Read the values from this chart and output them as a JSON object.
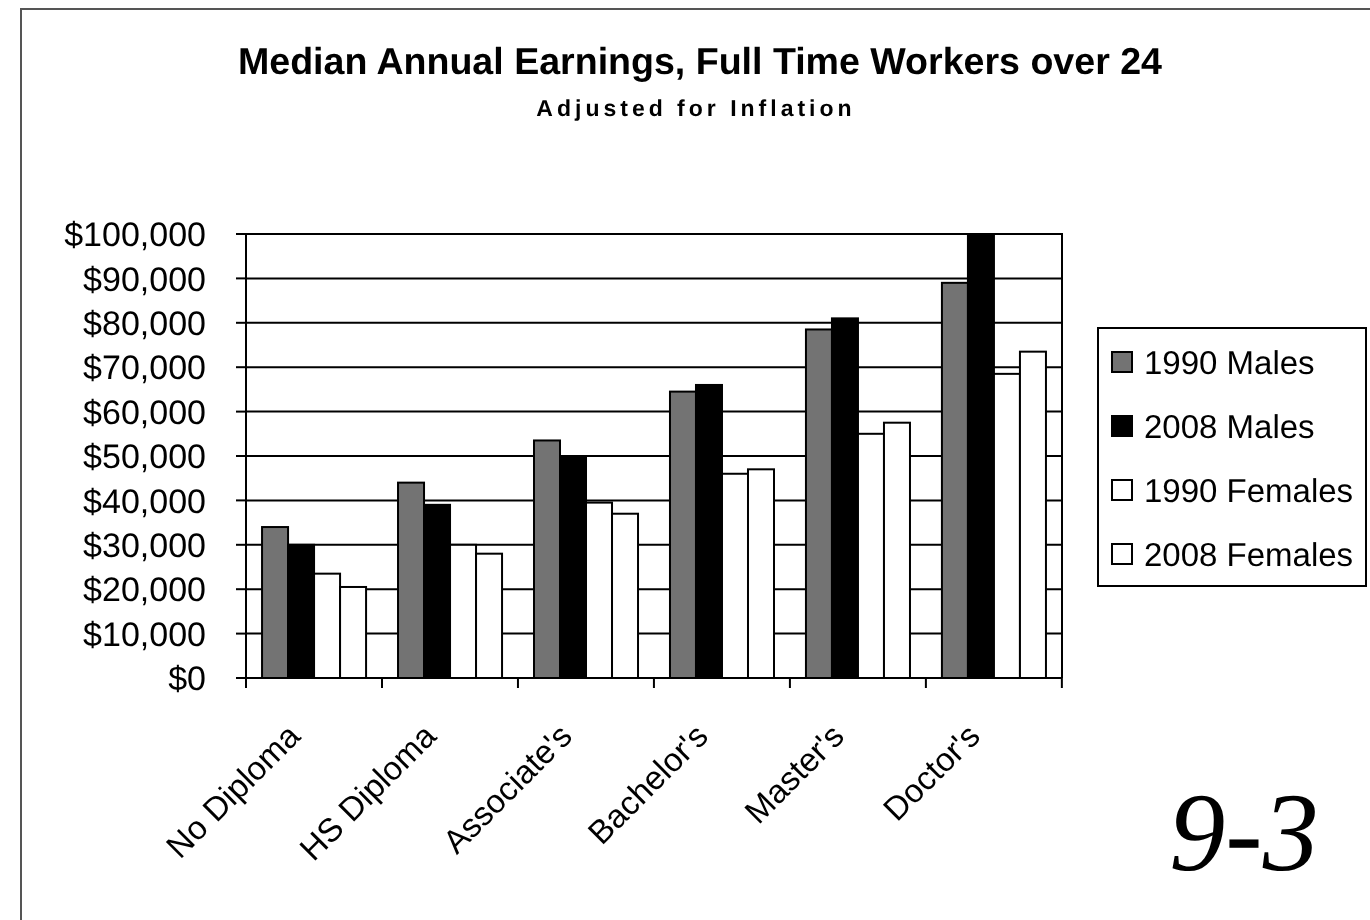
{
  "chart_data": {
    "type": "bar",
    "title": "Median Annual Earnings, Full Time Workers over 24",
    "subtitle": "Adjusted for Inflation",
    "categories": [
      "No Diploma",
      "HS Diploma",
      "Associate's",
      "Bachelor's",
      "Master's",
      "Doctor's"
    ],
    "series": [
      {
        "name": "1990 Males",
        "color": "#737373",
        "values": [
          34000,
          44000,
          53500,
          64500,
          78500,
          89000
        ]
      },
      {
        "name": "2008 Males",
        "color": "#000000",
        "values": [
          30000,
          39000,
          50000,
          66000,
          81000,
          100000
        ]
      },
      {
        "name": "1990 Females",
        "color": "#ffffff",
        "values": [
          23500,
          30000,
          39500,
          46000,
          55000,
          68500
        ]
      },
      {
        "name": "2008 Females",
        "color": "#ffffff",
        "values": [
          20500,
          28000,
          37000,
          47000,
          57500,
          73500
        ]
      }
    ],
    "ylim": [
      0,
      100000
    ],
    "yticks": [
      {
        "value": 0,
        "label": "$0"
      },
      {
        "value": 10000,
        "label": "$10,000"
      },
      {
        "value": 20000,
        "label": "$20,000"
      },
      {
        "value": 30000,
        "label": "$30,000"
      },
      {
        "value": 40000,
        "label": "$40,000"
      },
      {
        "value": 50000,
        "label": "$50,000"
      },
      {
        "value": 60000,
        "label": "$60,000"
      },
      {
        "value": 70000,
        "label": "$70,000"
      },
      {
        "value": 80000,
        "label": "$80,000"
      },
      {
        "value": 90000,
        "label": "$90,000"
      },
      {
        "value": 100000,
        "label": "$100,000"
      }
    ],
    "grid": "y",
    "legend": "right",
    "annotations": [
      "9-3"
    ]
  }
}
